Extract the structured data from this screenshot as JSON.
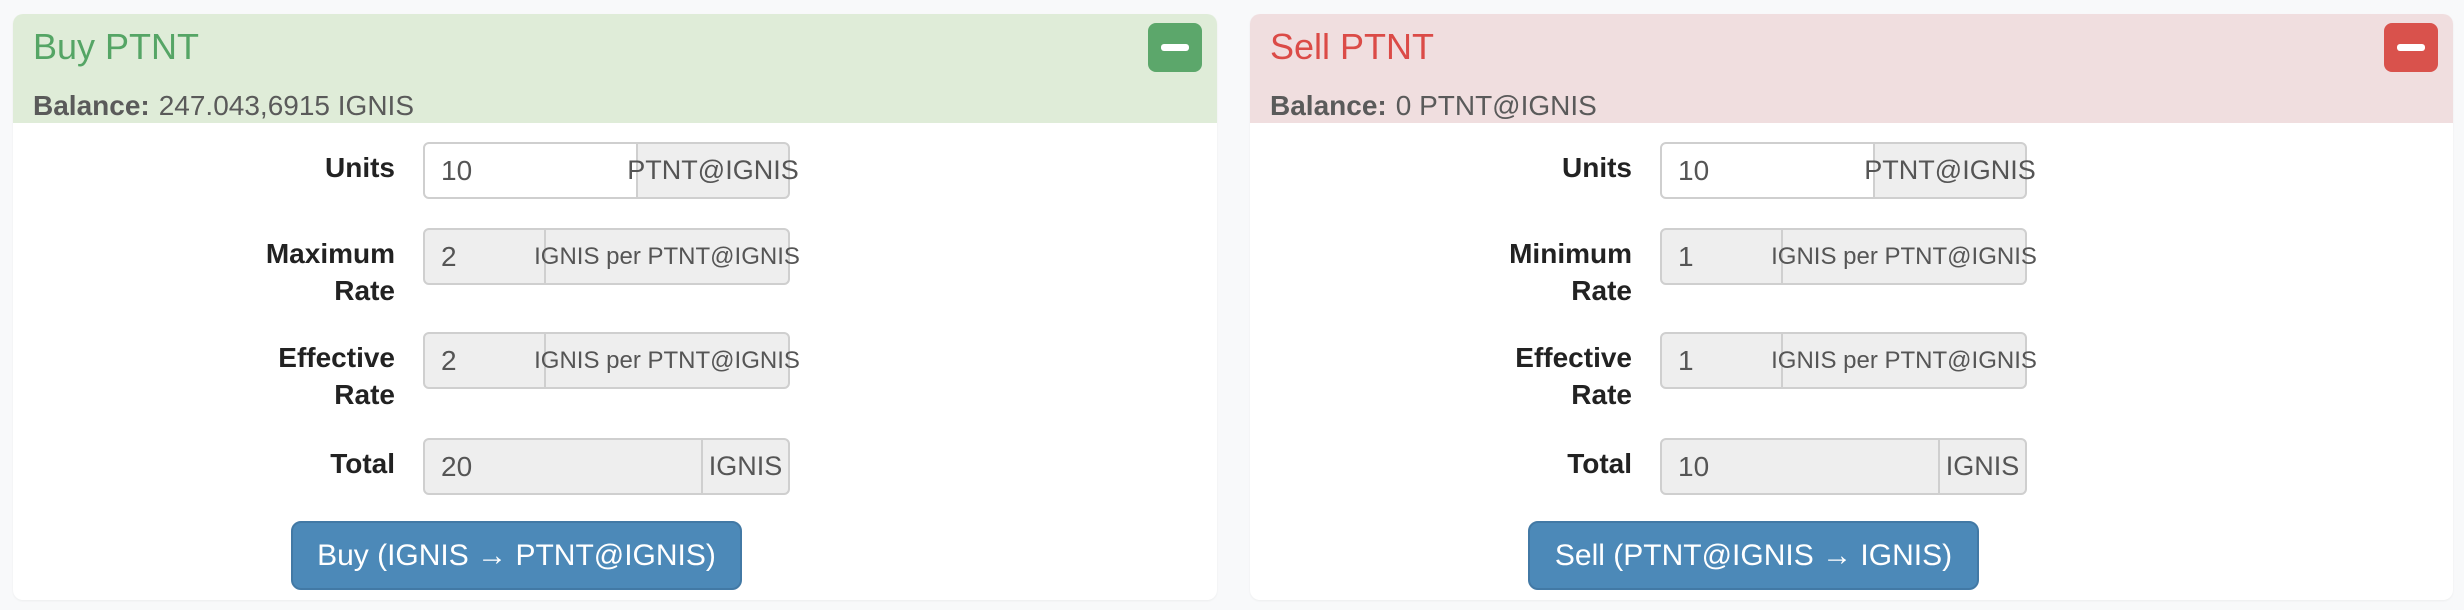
{
  "page": {
    "background": "#f8f9fa",
    "card_background": "#ffffff",
    "action_button_color": "#4c89b8"
  },
  "panels": [
    {
      "title": "Buy PTNT",
      "title_color": "#55a565",
      "header_background": "#dfecd8",
      "collapse_button_color": "#5ca76b",
      "collapse_icon": "minus-icon",
      "balance_label": "Balance:",
      "balance_value": "247.043,6915 IGNIS",
      "fields": [
        {
          "label": "Units",
          "value": "10",
          "addon": "PTNT@IGNIS",
          "readonly": false
        },
        {
          "label": "Maximum Rate",
          "value": "2",
          "addon": "IGNIS per PTNT@IGNIS",
          "readonly": true
        },
        {
          "label": "Effective Rate",
          "value": "2",
          "addon": "IGNIS per PTNT@IGNIS",
          "readonly": true
        },
        {
          "label": "Total",
          "value": "20",
          "addon": "IGNIS",
          "readonly": true
        }
      ],
      "action_label": "Buy (IGNIS → PTNT@IGNIS)"
    },
    {
      "title": "Sell PTNT",
      "title_color": "#db4b47",
      "header_background": "#f0dedf",
      "collapse_button_color": "#d9524c",
      "collapse_icon": "minus-icon",
      "balance_label": "Balance:",
      "balance_value": "0 PTNT@IGNIS",
      "fields": [
        {
          "label": "Units",
          "value": "10",
          "addon": "PTNT@IGNIS",
          "readonly": false
        },
        {
          "label": "Minimum Rate",
          "value": "1",
          "addon": "IGNIS per PTNT@IGNIS",
          "readonly": true
        },
        {
          "label": "Effective Rate",
          "value": "1",
          "addon": "IGNIS per PTNT@IGNIS",
          "readonly": true
        },
        {
          "label": "Total",
          "value": "10",
          "addon": "IGNIS",
          "readonly": true
        }
      ],
      "action_label": "Sell (PTNT@IGNIS → IGNIS)"
    }
  ]
}
